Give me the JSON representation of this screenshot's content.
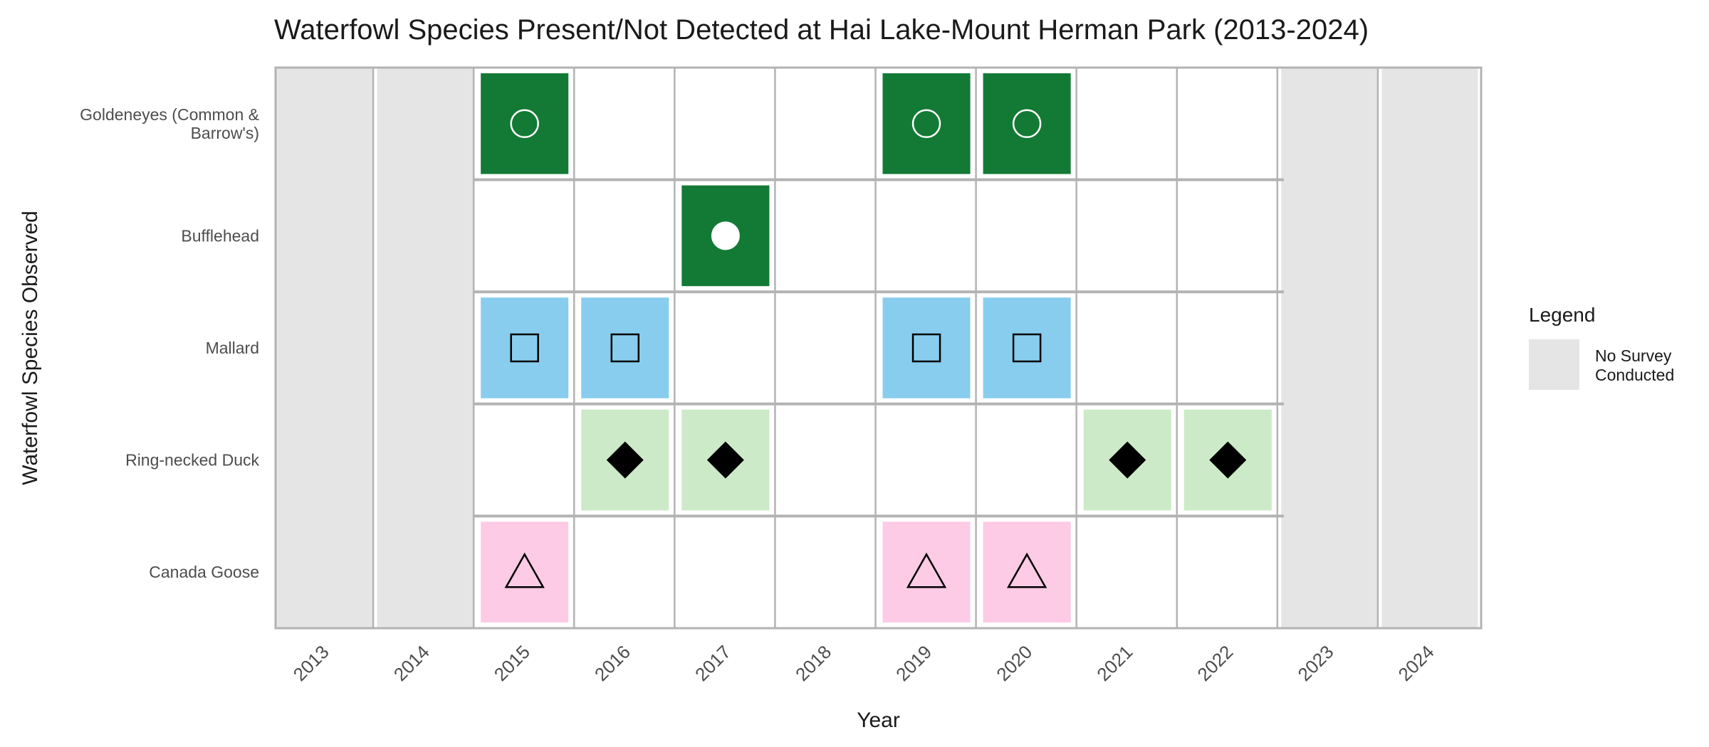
{
  "chart_data": {
    "type": "heatmap",
    "title": "Waterfowl Species Present/Not Detected at Hai Lake-Mount Herman Park (2013-2024)",
    "xlabel": "Year",
    "ylabel": "Waterfowl Species Observed",
    "x": [
      "2013",
      "2014",
      "2015",
      "2016",
      "2017",
      "2018",
      "2019",
      "2020",
      "2021",
      "2022",
      "2023",
      "2024"
    ],
    "no_survey_years": [
      "2013",
      "2014",
      "2023",
      "2024"
    ],
    "species": [
      {
        "name": "Goldeneyes (Common & Barrow's)",
        "label_lines": [
          "Goldeneyes (Common &",
          "Barrow's)"
        ],
        "color": "#137a35",
        "marker": "open-circle-icon",
        "marker_color": "#ffffff",
        "present": [
          "2015",
          "2019",
          "2020"
        ]
      },
      {
        "name": "Bufflehead",
        "label_lines": [
          "Bufflehead"
        ],
        "color": "#137a35",
        "marker": "filled-circle-icon",
        "marker_color": "#ffffff",
        "present": [
          "2017"
        ]
      },
      {
        "name": "Mallard",
        "label_lines": [
          "Mallard"
        ],
        "color": "#89cdee",
        "marker": "open-square-icon",
        "marker_color": "#000000",
        "present": [
          "2015",
          "2016",
          "2019",
          "2020"
        ]
      },
      {
        "name": "Ring-necked Duck",
        "label_lines": [
          "Ring-necked Duck"
        ],
        "color": "#cdeac8",
        "marker": "filled-diamond-icon",
        "marker_color": "#000000",
        "present": [
          "2016",
          "2017",
          "2021",
          "2022"
        ]
      },
      {
        "name": "Canada Goose",
        "label_lines": [
          "Canada Goose"
        ],
        "color": "#fdcbe6",
        "marker": "open-triangle-icon",
        "marker_color": "#000000",
        "present": [
          "2015",
          "2019",
          "2020"
        ]
      }
    ],
    "colors": {
      "no_survey": "#e5e5e5",
      "grid": "#b3b3b3",
      "panel_border": "#b3b3b3"
    },
    "legend": {
      "title": "Legend",
      "position": "right",
      "items": [
        {
          "label_lines": [
            "No Survey",
            "Conducted"
          ],
          "color": "#e5e5e5"
        }
      ]
    }
  }
}
